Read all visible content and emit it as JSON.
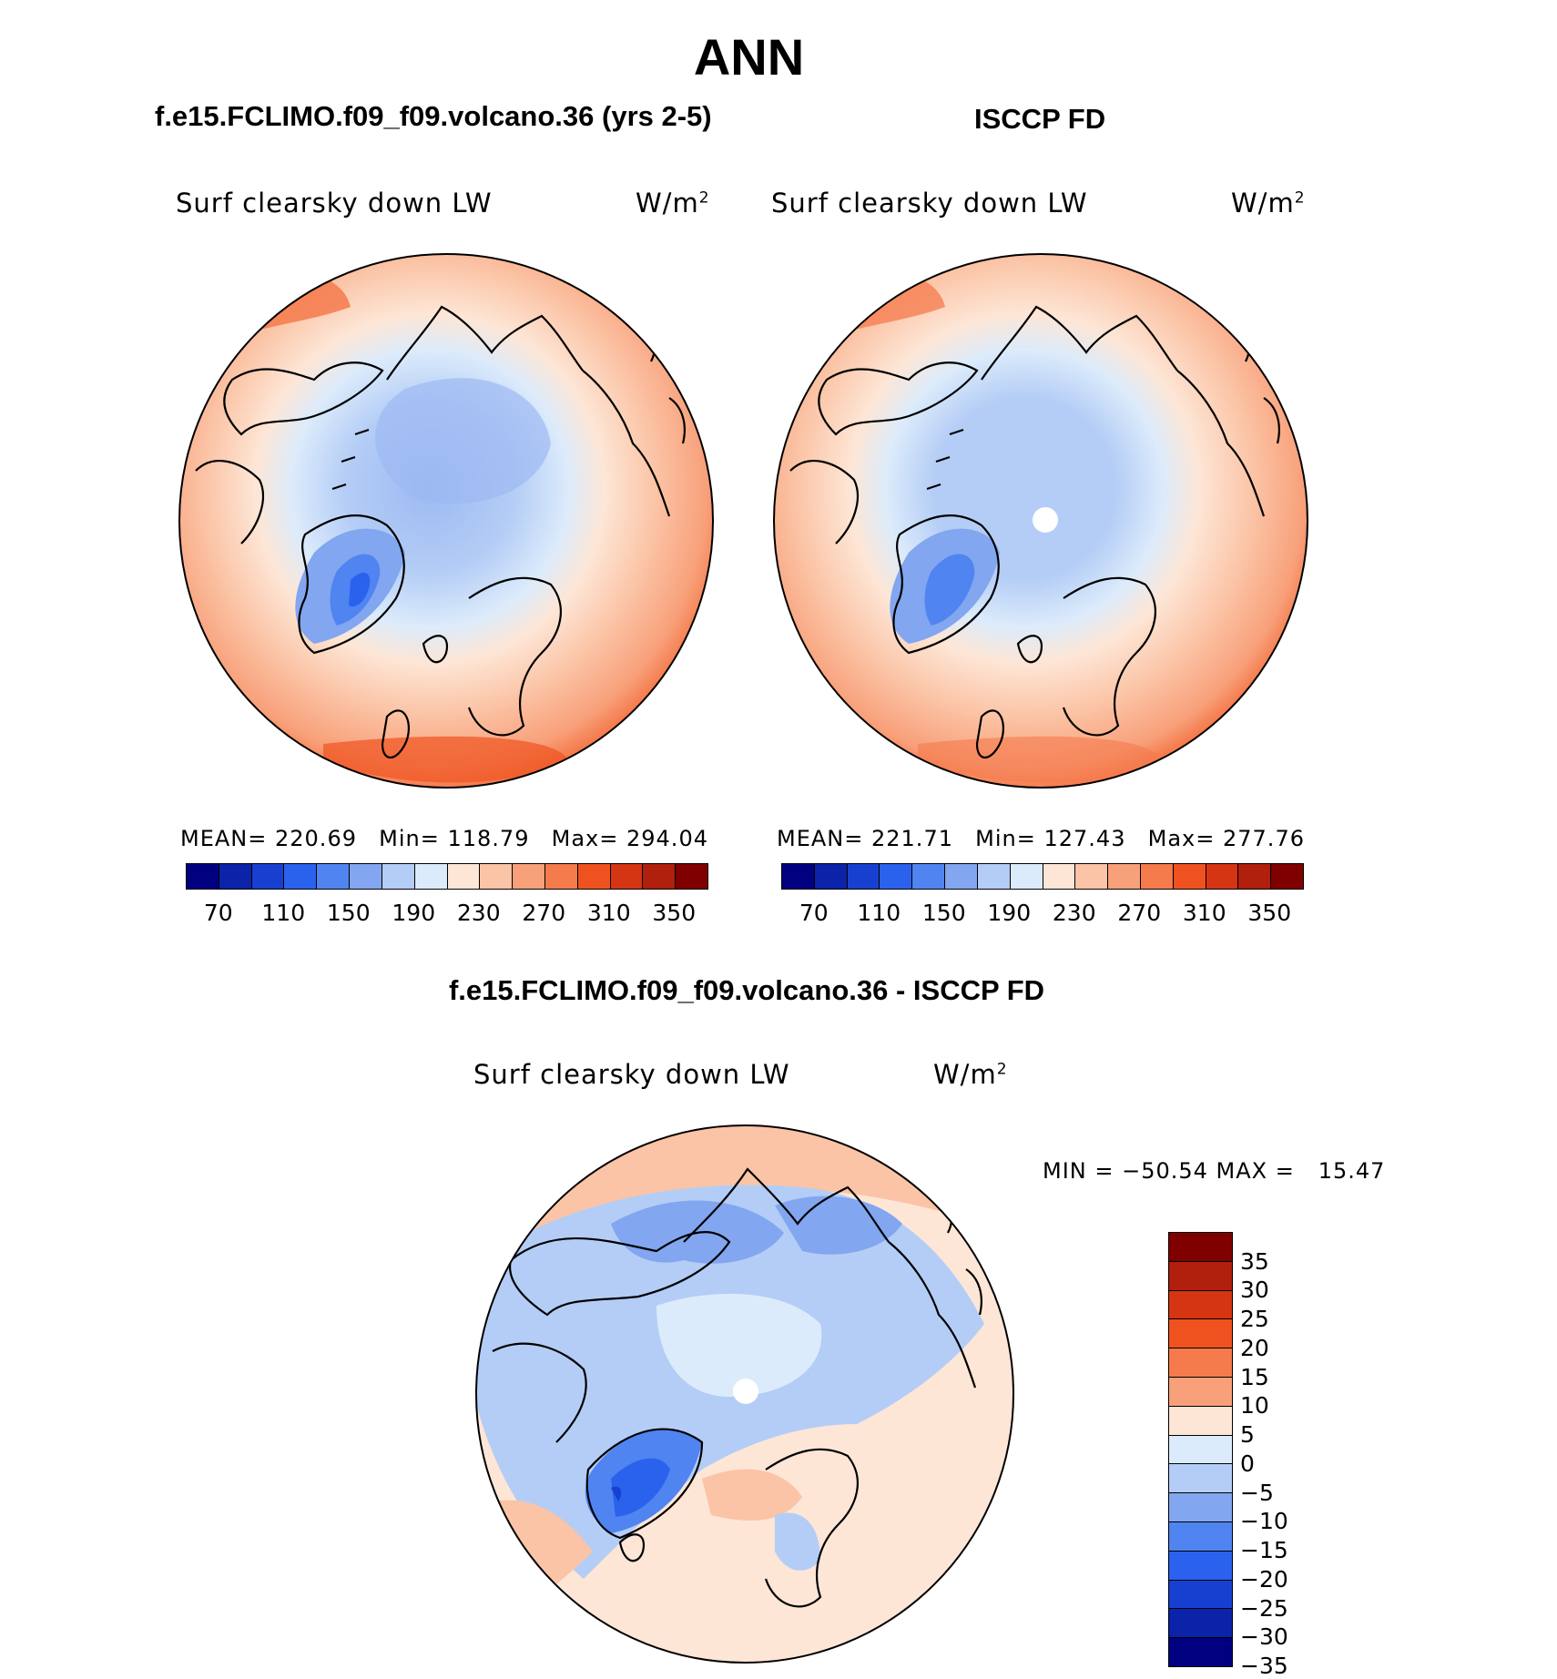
{
  "title": "ANN",
  "panels": [
    {
      "title": "f.e15.FCLIMO.f09_f09.volcano.36 (yrs 2-5)",
      "variable": "Surf clearsky down LW",
      "units": "W/m",
      "units_sup": "2",
      "mean_label": "MEAN=",
      "mean": "220.69",
      "min_label": "Min=",
      "min": "118.79",
      "max_label": "Max=",
      "max": "294.04"
    },
    {
      "title": "ISCCP FD",
      "variable": "Surf clearsky down LW",
      "units": "W/m",
      "units_sup": "2",
      "mean_label": "MEAN=",
      "mean": "221.71",
      "min_label": "Min=",
      "min": "127.43",
      "max_label": "Max=",
      "max": "277.76"
    }
  ],
  "difference": {
    "title": "f.e15.FCLIMO.f09_f09.volcano.36 - ISCCP FD",
    "variable": "Surf clearsky down LW",
    "units": "W/m",
    "units_sup": "2",
    "minmax": "MIN = −50.54 MAX =   15.47"
  },
  "colorbar_abs": {
    "colors": [
      "#000080",
      "#0a23a8",
      "#1840d0",
      "#2a62ee",
      "#5084f0",
      "#82a6f0",
      "#b4cdf6",
      "#dcebfb",
      "#fde6d6",
      "#fbc4a6",
      "#f8a07a",
      "#f57a4c",
      "#f0521f",
      "#d63514",
      "#b0200c",
      "#800000"
    ],
    "labels": [
      "70",
      "110",
      "150",
      "190",
      "230",
      "270",
      "310",
      "350"
    ]
  },
  "colorbar_diff": {
    "colors": [
      "#800000",
      "#b0200c",
      "#d63514",
      "#f0521f",
      "#f57a4c",
      "#f8a07a",
      "#fde6d6",
      "#dcebfb",
      "#b4cdf6",
      "#82a6f0",
      "#5084f0",
      "#2a62ee",
      "#1840d0",
      "#0a23a8",
      "#000080"
    ],
    "labels": [
      "35",
      "30",
      "25",
      "20",
      "15",
      "10",
      "5",
      "0",
      "−5",
      "−10",
      "−15",
      "−20",
      "−25",
      "−30",
      "−35"
    ]
  }
}
